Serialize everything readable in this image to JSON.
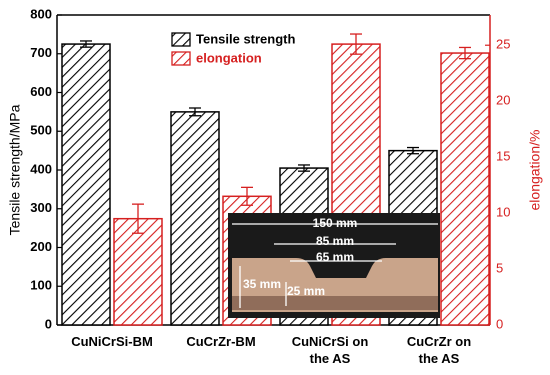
{
  "chart_data": {
    "type": "bar",
    "categories": [
      "CuNiCrSi-BM",
      "CuCrZr-BM",
      "CuNiCrSi on\nthe AS",
      "CuCrZr on\nthe AS"
    ],
    "series": [
      {
        "name": "Tensile strength",
        "color": "#000000",
        "values": [
          725,
          550,
          405,
          450
        ],
        "errors": [
          8,
          10,
          8,
          8
        ]
      },
      {
        "name": "elongation",
        "color": "#d62020",
        "values": [
          9.5,
          11.5,
          25.1,
          24.3
        ],
        "errors": [
          1.3,
          0.8,
          0.9,
          0.5
        ],
        "axis": "y2"
      }
    ],
    "ylabel": "Tensile strength/MPa",
    "y2label": "elongation/%",
    "ylim": [
      0,
      800
    ],
    "yticks": [
      0,
      100,
      200,
      300,
      400,
      500,
      600,
      700,
      800
    ],
    "y2lim": [
      0,
      27.7
    ],
    "y2ticks": [
      0,
      5,
      10,
      15,
      20,
      25
    ],
    "legend": "upper center",
    "annotations": [
      "150 mm",
      "85 mm",
      "65 mm",
      "35 mm",
      "25 mm"
    ]
  }
}
